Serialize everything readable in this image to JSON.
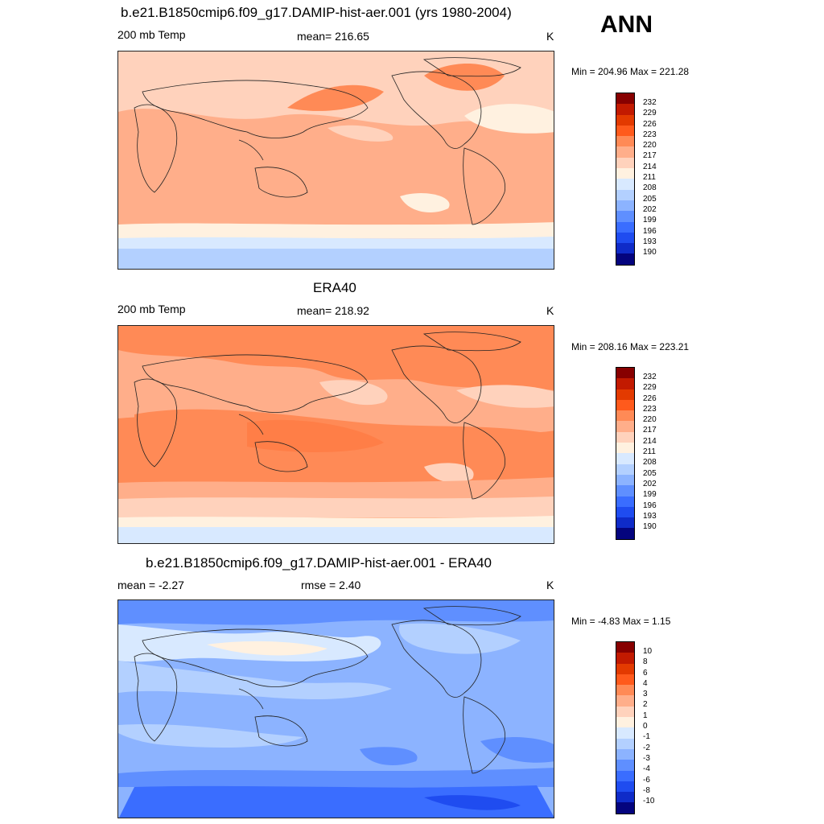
{
  "header": {
    "title": "b.e21.B1850cmip6.f09_g17.DAMIP-hist-aer.001 (yrs 1980-2004)",
    "season": "ANN"
  },
  "panels": [
    {
      "id": "model",
      "title": "",
      "left_label": "200 mb Temp",
      "center_label": "mean= 216.65",
      "units": "K",
      "minmax": "Min = 204.96 Max = 221.28",
      "colorbar_colors": [
        "#870000",
        "#c21a00",
        "#e33a00",
        "#ff5a1c",
        "#ff8a56",
        "#ffae8a",
        "#ffd2bc",
        "#fff1e0",
        "#d8e9ff",
        "#b3d0ff",
        "#8cb3ff",
        "#5f8fff",
        "#3a6dff",
        "#1f4cf0",
        "#0f2bc8",
        "#04047e"
      ],
      "colorbar_labels": [
        "232",
        "229",
        "226",
        "223",
        "220",
        "217",
        "214",
        "211",
        "208",
        "205",
        "202",
        "199",
        "196",
        "193",
        "190"
      ]
    },
    {
      "id": "obs",
      "title": "ERA40",
      "left_label": "200 mb Temp",
      "center_label": "mean= 218.92",
      "units": "K",
      "minmax": "Min = 208.16 Max = 223.21",
      "colorbar_colors": [
        "#870000",
        "#c21a00",
        "#e33a00",
        "#ff5a1c",
        "#ff8a56",
        "#ffae8a",
        "#ffd2bc",
        "#fff1e0",
        "#d8e9ff",
        "#b3d0ff",
        "#8cb3ff",
        "#5f8fff",
        "#3a6dff",
        "#1f4cf0",
        "#0f2bc8",
        "#04047e"
      ],
      "colorbar_labels": [
        "232",
        "229",
        "226",
        "223",
        "220",
        "217",
        "214",
        "211",
        "208",
        "205",
        "202",
        "199",
        "196",
        "193",
        "190"
      ]
    },
    {
      "id": "diff",
      "title": "b.e21.B1850cmip6.f09_g17.DAMIP-hist-aer.001 - ERA40",
      "left_label": "mean =  -2.27",
      "center_label": "rmse =   2.40",
      "units": "K",
      "minmax": "Min =  -4.83 Max =   1.15",
      "colorbar_colors": [
        "#870000",
        "#c21a00",
        "#e33a00",
        "#ff5a1c",
        "#ff8a56",
        "#ffae8a",
        "#ffd2bc",
        "#fff1e0",
        "#d8e9ff",
        "#b3d0ff",
        "#8cb3ff",
        "#5f8fff",
        "#3a6dff",
        "#1f4cf0",
        "#0f2bc8",
        "#04047e"
      ],
      "colorbar_labels": [
        "10",
        "8",
        "6",
        "4",
        "3",
        "2",
        "1",
        "0",
        "-1",
        "-2",
        "-3",
        "-4",
        "-6",
        "-8",
        "-10"
      ]
    }
  ]
}
